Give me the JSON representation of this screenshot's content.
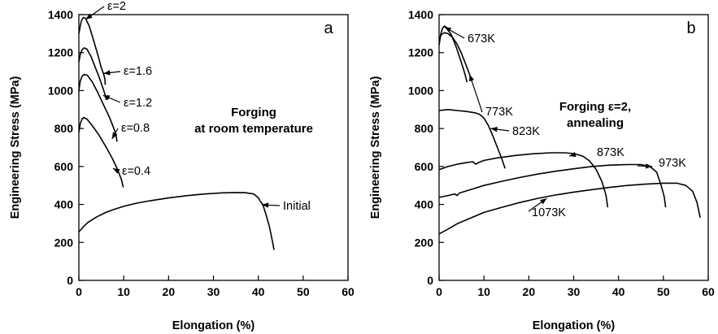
{
  "chart_data": [
    {
      "type": "line",
      "panel_label": "a",
      "title": "Forging\nat room temperature",
      "xlabel": "Elongation (%)",
      "ylabel": "Engineering Stress (MPa)",
      "xlim": [
        0,
        60
      ],
      "ylim": [
        0,
        1400
      ],
      "xticks": [
        0,
        10,
        20,
        30,
        40,
        50,
        60
      ],
      "yticks": [
        0,
        200,
        400,
        600,
        800,
        1000,
        1200,
        1400
      ],
      "grid": false,
      "legend": "none",
      "series": [
        {
          "name": "ε=2",
          "points": [
            [
              0,
              1300
            ],
            [
              0.3,
              1340
            ],
            [
              0.6,
              1370
            ],
            [
              1.0,
              1385
            ],
            [
              1.5,
              1380
            ],
            [
              2.3,
              1340
            ],
            [
              3.2,
              1270
            ],
            [
              4.2,
              1190
            ],
            [
              5.0,
              1120
            ],
            [
              5.6,
              1080
            ],
            [
              5.8,
              1060
            ],
            [
              5.9,
              1030
            ]
          ]
        },
        {
          "name": "ε=1.6",
          "points": [
            [
              0,
              1150
            ],
            [
              0.3,
              1190
            ],
            [
              0.7,
              1215
            ],
            [
              1.2,
              1225
            ],
            [
              1.8,
              1218
            ],
            [
              2.7,
              1180
            ],
            [
              3.6,
              1125
            ],
            [
              4.6,
              1065
            ],
            [
              5.4,
              1010
            ],
            [
              5.9,
              975
            ],
            [
              6.1,
              950
            ]
          ]
        },
        {
          "name": "ε=1.2",
          "points": [
            [
              0,
              1000
            ],
            [
              0.3,
              1050
            ],
            [
              0.7,
              1075
            ],
            [
              1.2,
              1085
            ],
            [
              1.9,
              1080
            ],
            [
              3.0,
              1045
            ],
            [
              4.2,
              990
            ],
            [
              5.5,
              925
            ],
            [
              6.8,
              860
            ],
            [
              7.8,
              800
            ],
            [
              8.3,
              765
            ],
            [
              8.5,
              730
            ]
          ]
        },
        {
          "name": "ε=0.8",
          "points": [
            [
              0,
              780
            ],
            [
              0.3,
              825
            ],
            [
              0.7,
              850
            ],
            [
              1.1,
              858
            ],
            [
              1.8,
              850
            ],
            [
              3.0,
              815
            ],
            [
              4.5,
              765
            ],
            [
              6.0,
              705
            ],
            [
              7.5,
              640
            ],
            [
              8.7,
              580
            ],
            [
              9.5,
              530
            ],
            [
              9.9,
              490
            ]
          ]
        },
        {
          "name": "ε=0.4",
          "points": []
        },
        {
          "name": "Initial",
          "points": [
            [
              0,
              255
            ],
            [
              1,
              282
            ],
            [
              2,
              305
            ],
            [
              4,
              335
            ],
            [
              6,
              358
            ],
            [
              8,
              375
            ],
            [
              10,
              390
            ],
            [
              13,
              407
            ],
            [
              16,
              420
            ],
            [
              20,
              434
            ],
            [
              24,
              446
            ],
            [
              28,
              455
            ],
            [
              32,
              461
            ],
            [
              35,
              463
            ],
            [
              37,
              462
            ],
            [
              39,
              455
            ],
            [
              40,
              435
            ],
            [
              40.5,
              415
            ],
            [
              41,
              400
            ],
            [
              41.8,
              340
            ],
            [
              42.5,
              280
            ],
            [
              43.2,
              200
            ],
            [
              43.5,
              160
            ]
          ]
        }
      ],
      "annotations": [
        {
          "text": "ε=2",
          "target": [
            1.5,
            1375
          ]
        },
        {
          "text": "ε=1.6",
          "target": [
            5.5,
            1090
          ]
        },
        {
          "text": "ε=1.2",
          "target": [
            5.4,
            975
          ]
        },
        {
          "text": "ε=0.8",
          "target": [
            7.4,
            745
          ]
        },
        {
          "text": "ε=0.4",
          "target": [
            7.6,
            590
          ]
        },
        {
          "text": "Initial",
          "target": [
            40.8,
            398
          ]
        }
      ]
    },
    {
      "type": "line",
      "panel_label": "b",
      "title": "Forging ε=2,\nannealing",
      "xlabel": "Elongation (%)",
      "ylabel": "Engineering Stress (MPa)",
      "xlim": [
        0,
        60
      ],
      "ylim": [
        0,
        1400
      ],
      "xticks": [
        0,
        10,
        20,
        30,
        40,
        50,
        60
      ],
      "yticks": [
        0,
        200,
        400,
        600,
        800,
        1000,
        1200,
        1400
      ],
      "grid": false,
      "legend": "none",
      "series": [
        {
          "name": "673K",
          "points": [
            [
              0,
              1240
            ],
            [
              0.4,
              1300
            ],
            [
              0.8,
              1330
            ],
            [
              1.2,
              1340
            ],
            [
              1.8,
              1330
            ],
            [
              2.8,
              1290
            ],
            [
              3.8,
              1230
            ],
            [
              4.8,
              1160
            ],
            [
              5.6,
              1100
            ],
            [
              6.0,
              1065
            ],
            [
              6.2,
              1045
            ]
          ]
        },
        {
          "name": "773K",
          "points": [
            [
              0,
              1270
            ],
            [
              0.5,
              1295
            ],
            [
              1.2,
              1305
            ],
            [
              2.0,
              1300
            ],
            [
              3.0,
              1280
            ],
            [
              4.0,
              1245
            ],
            [
              5.0,
              1195
            ],
            [
              6.0,
              1135
            ],
            [
              6.8,
              1085
            ],
            [
              7.3,
              1050
            ]
          ]
        },
        {
          "name": "823K",
          "points": [
            [
              0,
              895
            ],
            [
              2,
              900
            ],
            [
              4,
              895
            ],
            [
              6,
              890
            ],
            [
              8,
              883
            ],
            [
              9,
              875
            ],
            [
              10,
              855
            ],
            [
              11,
              815
            ],
            [
              12,
              760
            ],
            [
              13,
              700
            ],
            [
              14,
              640
            ],
            [
              14.7,
              590
            ]
          ]
        },
        {
          "name": "873K",
          "points": [
            [
              0,
              583
            ],
            [
              2,
              600
            ],
            [
              4,
              612
            ],
            [
              6,
              620
            ],
            [
              7.5,
              625
            ],
            [
              8.2,
              612
            ],
            [
              8.7,
              620
            ],
            [
              10,
              632
            ],
            [
              13,
              645
            ],
            [
              17,
              658
            ],
            [
              21,
              667
            ],
            [
              25,
              672
            ],
            [
              28,
              672
            ],
            [
              30,
              668
            ],
            [
              32,
              655
            ],
            [
              33.5,
              630
            ],
            [
              35,
              585
            ],
            [
              36.3,
              520
            ],
            [
              37.2,
              450
            ],
            [
              37.6,
              385
            ]
          ]
        },
        {
          "name": "973K",
          "points": [
            [
              0,
              437
            ],
            [
              2,
              447
            ],
            [
              3.5,
              455
            ],
            [
              4,
              447
            ],
            [
              4.5,
              460
            ],
            [
              7,
              478
            ],
            [
              10,
              500
            ],
            [
              14,
              522
            ],
            [
              18,
              542
            ],
            [
              22,
              560
            ],
            [
              26,
              575
            ],
            [
              30,
              588
            ],
            [
              34,
              600
            ],
            [
              38,
              607
            ],
            [
              42,
              610
            ],
            [
              45,
              610
            ],
            [
              47,
              600
            ],
            [
              48.5,
              570
            ],
            [
              49.5,
              500
            ],
            [
              50.2,
              440
            ],
            [
              50.5,
              385
            ]
          ]
        },
        {
          "name": "1073K",
          "points": [
            [
              0,
              245
            ],
            [
              2,
              270
            ],
            [
              4,
              298
            ],
            [
              7,
              328
            ],
            [
              10,
              358
            ],
            [
              14,
              385
            ],
            [
              18,
              410
            ],
            [
              22,
              432
            ],
            [
              26,
              450
            ],
            [
              30,
              465
            ],
            [
              34,
              478
            ],
            [
              38,
              490
            ],
            [
              42,
              500
            ],
            [
              46,
              507
            ],
            [
              50,
              512
            ],
            [
              53,
              512
            ],
            [
              55,
              500
            ],
            [
              56.5,
              470
            ],
            [
              57.5,
              410
            ],
            [
              58.2,
              330
            ]
          ]
        }
      ],
      "annotations": [
        {
          "text": "673K",
          "target": [
            1.2,
            1335
          ]
        },
        {
          "text": "773K",
          "target": [
            6.8,
            1085
          ]
        },
        {
          "text": "823K",
          "target": [
            11.5,
            800
          ]
        },
        {
          "text": "873K",
          "target": [
            29,
            655
          ]
        },
        {
          "text": "973K",
          "target": [
            47.5,
            600
          ]
        },
        {
          "text": "1073K",
          "target": [
            24,
            432
          ]
        }
      ]
    }
  ]
}
